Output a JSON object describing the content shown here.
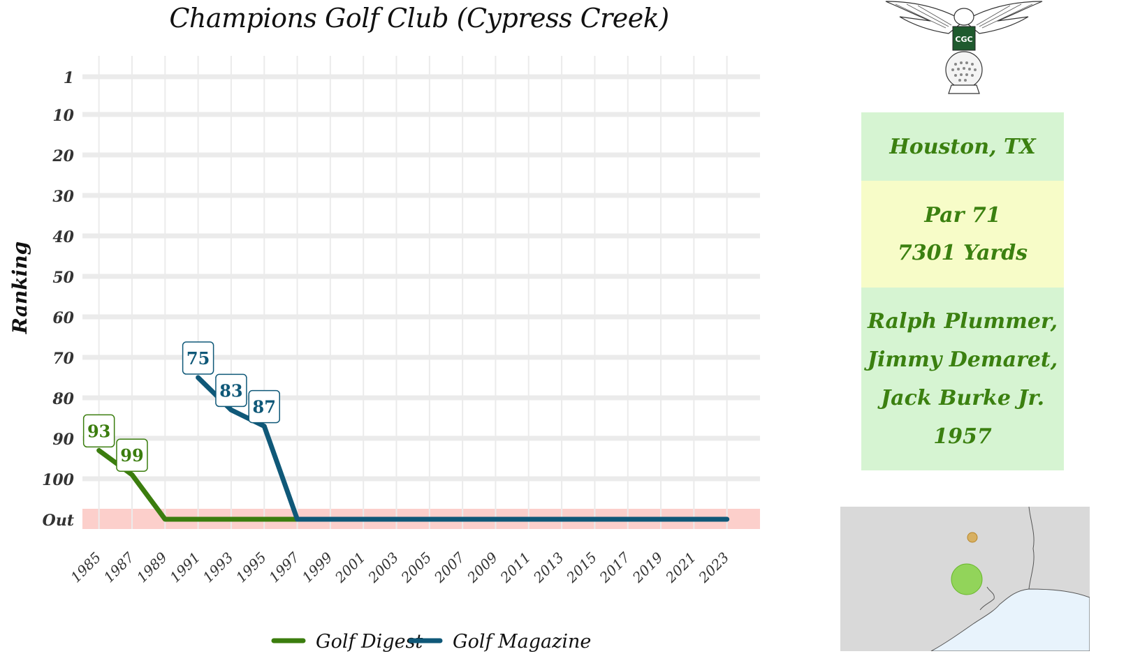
{
  "chart_data": {
    "type": "line",
    "title": "Champions Golf Club (Cypress Creek)",
    "ylabel": "Ranking",
    "xlabel": "",
    "x_ticks": [
      1985,
      1987,
      1989,
      1991,
      1993,
      1995,
      1997,
      1999,
      2001,
      2003,
      2005,
      2007,
      2009,
      2011,
      2013,
      2015,
      2017,
      2019,
      2021,
      2023
    ],
    "x_range": [
      1984,
      2025
    ],
    "y_ticks": [
      {
        "value": 1,
        "label": "1"
      },
      {
        "value": 10,
        "label": "10"
      },
      {
        "value": 20,
        "label": "20"
      },
      {
        "value": 30,
        "label": "30"
      },
      {
        "value": 40,
        "label": "40"
      },
      {
        "value": 50,
        "label": "50"
      },
      {
        "value": 60,
        "label": "60"
      },
      {
        "value": 70,
        "label": "70"
      },
      {
        "value": 80,
        "label": "80"
      },
      {
        "value": 90,
        "label": "90"
      },
      {
        "value": 100,
        "label": "100"
      },
      {
        "value": 110,
        "label": "Out"
      }
    ],
    "y_reversed": true,
    "out_value": 110,
    "out_band_color": "#fccfcb",
    "grid": true,
    "legend_position": "bottom",
    "series": [
      {
        "name": "Golf Digest",
        "color": "#3b7d0e",
        "points": [
          {
            "x": 1985,
            "y": 93,
            "label": "93"
          },
          {
            "x": 1987,
            "y": 99,
            "label": "99"
          },
          {
            "x": 1989,
            "y": 110
          },
          {
            "x": 1997,
            "y": 110
          }
        ]
      },
      {
        "name": "Golf Magazine",
        "color": "#0f5878",
        "points": [
          {
            "x": 1991,
            "y": 75,
            "label": "75"
          },
          {
            "x": 1993,
            "y": 83,
            "label": "83"
          },
          {
            "x": 1995,
            "y": 87,
            "label": "87"
          },
          {
            "x": 1997,
            "y": 110
          },
          {
            "x": 2023,
            "y": 110
          }
        ]
      }
    ]
  },
  "info": {
    "location": "Houston, TX",
    "par": "Par 71",
    "yards": "7301 Yards",
    "designers": [
      "Ralph Plummer,",
      "Jimmy Demaret,",
      "Jack Burke Jr."
    ],
    "year": "1957",
    "logo_monogram": "CGC"
  },
  "map": {
    "land_color": "#d9d9d9",
    "water_color": "#e8f3fc",
    "course_marker_color": "#7fd23a",
    "other_marker_color": "#d6a23a"
  }
}
